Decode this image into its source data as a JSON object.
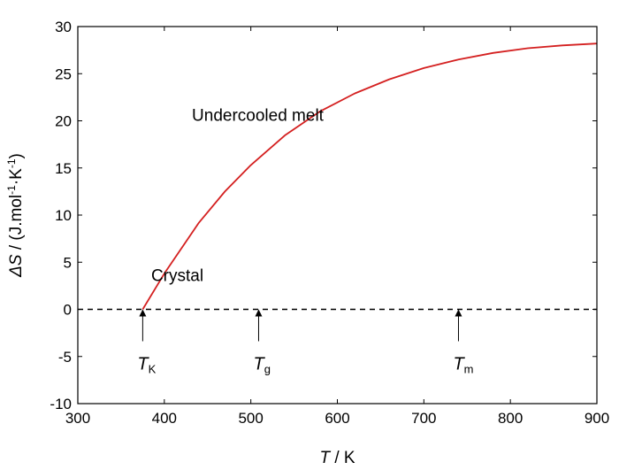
{
  "chart_data": {
    "type": "line",
    "title": "",
    "xlabel": {
      "symbol": "T",
      "unit": " / K"
    },
    "ylabel": {
      "symbol": "ΔS",
      "unit_text": " / (J.mol",
      "exp1": "-1",
      "mid": "·K",
      "exp2": "-1",
      "end": ")"
    },
    "xlim": [
      300,
      900
    ],
    "ylim": [
      -10,
      30
    ],
    "x_ticks": [
      300,
      400,
      500,
      600,
      700,
      800,
      900
    ],
    "y_ticks": [
      -10,
      -5,
      0,
      5,
      10,
      15,
      20,
      25,
      30
    ],
    "series": [
      {
        "color": "#d42020",
        "x": [
          375,
          400,
          440,
          470,
          500,
          540,
          580,
          620,
          660,
          700,
          740,
          780,
          820,
          860,
          900
        ],
        "y": [
          0,
          3.8,
          9.2,
          12.5,
          15.3,
          18.5,
          21,
          22.9,
          24.4,
          25.6,
          26.5,
          27.2,
          27.7,
          28.0,
          28.2
        ]
      }
    ],
    "reference_line": {
      "y": 0,
      "style": "dashed",
      "color": "#000000"
    },
    "annotations": [
      {
        "text": "Undercooled melt",
        "x": 508,
        "y": 20
      },
      {
        "text": "Crystal",
        "x": 415,
        "y": 3
      }
    ],
    "markers": [
      {
        "main": "T",
        "sub": "K",
        "x": 375
      },
      {
        "main": "T",
        "sub": "g",
        "x": 509
      },
      {
        "main": "T",
        "sub": "m",
        "x": 740
      }
    ],
    "grid": false,
    "legend": "none"
  }
}
